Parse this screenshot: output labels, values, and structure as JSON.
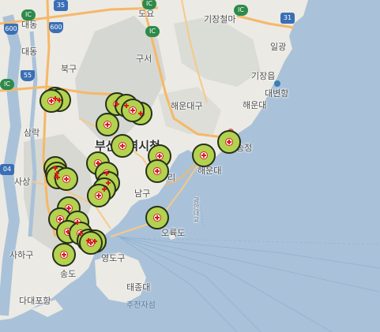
{
  "map": {
    "colors": {
      "land": "#eceae4",
      "water": "#a9c2d9",
      "mountain": "#cfd2cc",
      "road": "#f5b869",
      "marker_fill": "#b3d24f",
      "marker_border": "#26301a",
      "marker_icon": "#d71e1e"
    },
    "labels": [
      {
        "id": "label-doyo",
        "text": "도요"
      },
      {
        "id": "label-gijang-cheolma",
        "text": "기장철마"
      },
      {
        "id": "label-daedong-top",
        "text": "대동"
      },
      {
        "id": "label-daedong-2",
        "text": "대동"
      },
      {
        "id": "label-ilgwang",
        "text": "일광"
      },
      {
        "id": "label-buk-gu",
        "text": "북구"
      },
      {
        "id": "label-gijang-eup",
        "text": "기장읍"
      },
      {
        "id": "label-guseo",
        "text": "구서"
      },
      {
        "id": "label-daebyeon",
        "text": "대변항"
      },
      {
        "id": "label-haeundae-gu",
        "text": "해운대구"
      },
      {
        "id": "label-haeundae",
        "text": "해운대"
      },
      {
        "id": "label-busan-cityhall",
        "text": "부산광역시청"
      },
      {
        "id": "label-samrak",
        "text": "삼락"
      },
      {
        "id": "label-songjeong",
        "text": "송정"
      },
      {
        "id": "label-haeundae-beach",
        "text": "해운대"
      },
      {
        "id": "label-sasang",
        "text": "사상"
      },
      {
        "id": "label-nam-gu",
        "text": "남구"
      },
      {
        "id": "label-oryukdo",
        "text": "오륙도"
      },
      {
        "id": "label-saha-gu",
        "text": "사하구"
      },
      {
        "id": "label-yeongdo-gu",
        "text": "영도구"
      },
      {
        "id": "label-songdo",
        "text": "송도"
      },
      {
        "id": "label-taejongdae",
        "text": "태종대"
      },
      {
        "id": "label-dadaepo",
        "text": "다대포항"
      },
      {
        "id": "label-jujeonjasang",
        "text": "주전자섬"
      },
      {
        "id": "label-gwangan-bridge",
        "text": "광안대교"
      },
      {
        "id": "label-haeundae-ri",
        "text": "리"
      }
    ],
    "shields": [
      {
        "id": "shield-35",
        "text": "35"
      },
      {
        "id": "shield-ic-1",
        "text": "IC"
      },
      {
        "id": "shield-ic-2",
        "text": "IC"
      },
      {
        "id": "shield-ic-3",
        "text": "IC"
      },
      {
        "id": "shield-ic-4",
        "text": "IC"
      },
      {
        "id": "shield-600",
        "text": "600"
      },
      {
        "id": "shield-600b",
        "text": "600"
      },
      {
        "id": "shield-55",
        "text": "55"
      },
      {
        "id": "shield-31",
        "text": "31"
      },
      {
        "id": "shield-ic-5",
        "text": "IC"
      },
      {
        "id": "shield-04",
        "text": "04"
      }
    ],
    "marker_count": 34
  }
}
